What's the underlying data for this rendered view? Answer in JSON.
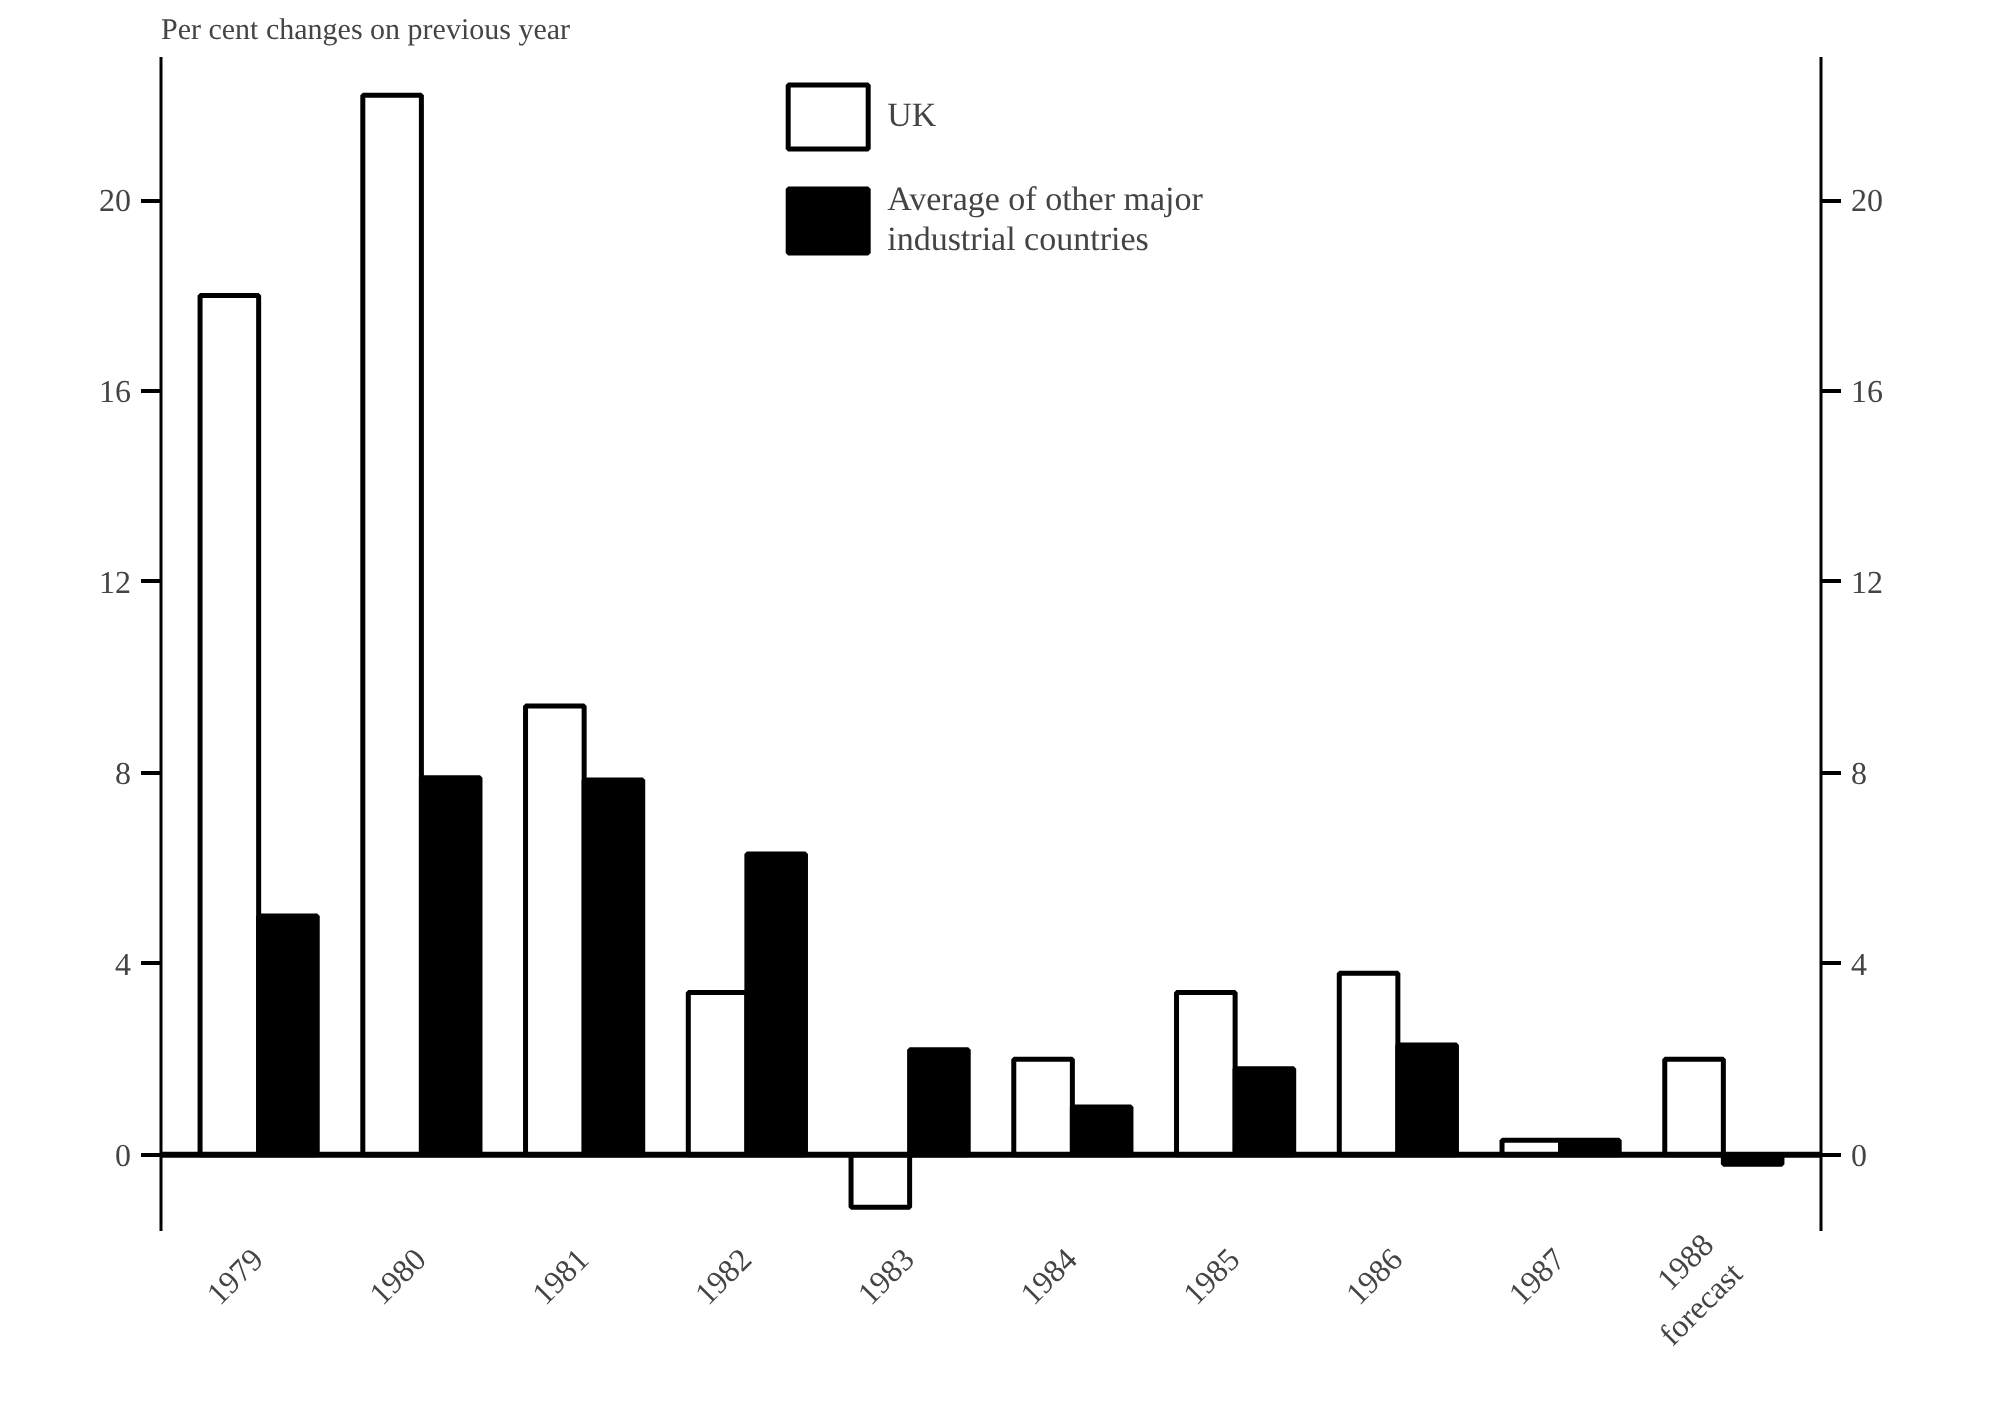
{
  "chart_data": {
    "type": "bar",
    "title": "Per cent changes on previous year",
    "categories": [
      "1979",
      "1980",
      "1981",
      "1982",
      "1983",
      "1984",
      "1985",
      "1986",
      "1987",
      "1988\nforecast"
    ],
    "series": [
      {
        "name": "UK",
        "color": "#ffffff",
        "values": [
          18,
          22.2,
          9.4,
          3.4,
          -1.1,
          2.0,
          3.4,
          3.8,
          0.3,
          2.0
        ]
      },
      {
        "name": "Average of other major\nindustrial countries",
        "color": "#000000",
        "values": [
          5.0,
          7.9,
          7.85,
          6.3,
          2.2,
          1.0,
          1.8,
          2.3,
          0.3,
          -0.2
        ]
      }
    ],
    "ylim": [
      -1.6,
      23
    ],
    "yticks": [
      0,
      4,
      8,
      12,
      16,
      20
    ],
    "y2lim": [
      -1.6,
      23
    ],
    "y2ticks": [
      0,
      4,
      8,
      12,
      16,
      20
    ],
    "ref_lines": [
      {
        "axis": "y",
        "value": 0,
        "color": "#000000"
      }
    ],
    "grid": false,
    "legend": "top"
  }
}
